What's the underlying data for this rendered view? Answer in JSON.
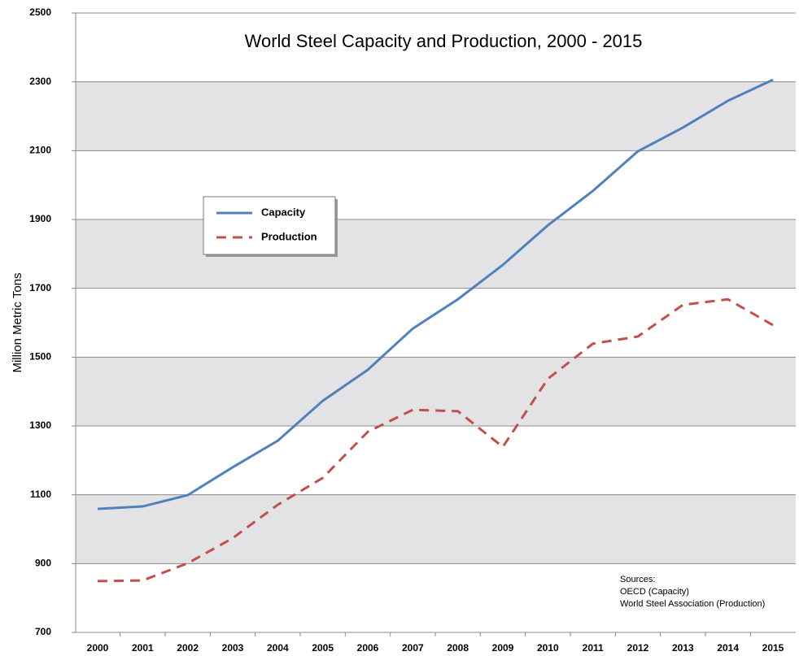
{
  "chart_data": {
    "type": "line",
    "title": "World Steel Capacity and Production, 2000 - 2015",
    "y_label": "Million Metric Tons",
    "categories": [
      "2000",
      "2001",
      "2002",
      "2003",
      "2004",
      "2005",
      "2006",
      "2007",
      "2008",
      "2009",
      "2010",
      "2011",
      "2012",
      "2013",
      "2014",
      "2015"
    ],
    "series": [
      {
        "name": "Capacity",
        "color": "#4f81bd",
        "dash": false,
        "values": [
          1059,
          1066,
          1099,
          1180,
          1257,
          1373,
          1463,
          1583,
          1668,
          1768,
          1883,
          1983,
          2098,
          2167,
          2245,
          2306
        ]
      },
      {
        "name": "Production",
        "color": "#c0504d",
        "dash": true,
        "values": [
          849,
          851,
          901,
          974,
          1071,
          1149,
          1283,
          1347,
          1343,
          1239,
          1437,
          1539,
          1560,
          1652,
          1668,
          1593
        ]
      }
    ],
    "ylim": [
      700,
      2500
    ],
    "yticks": [
      700,
      900,
      1100,
      1300,
      1500,
      1700,
      1900,
      2100,
      2300,
      2500
    ],
    "grid": true,
    "legend": "upper left",
    "annotation": [
      "Sources:",
      "OECD (Capacity)",
      "World Steel Association (Production)"
    ]
  }
}
